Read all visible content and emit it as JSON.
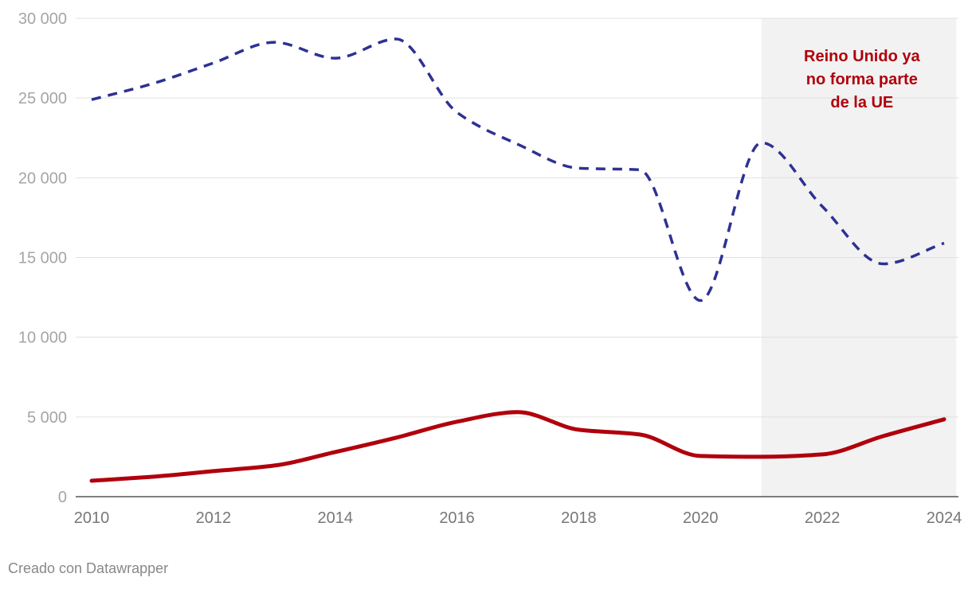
{
  "chart_data": {
    "type": "line",
    "x": [
      2010,
      2011,
      2012,
      2013,
      2014,
      2015,
      2016,
      2017,
      2018,
      2019,
      2020,
      2021,
      2022,
      2023,
      2024
    ],
    "series": [
      {
        "style": "dashed",
        "color": "#2e3192",
        "values": [
          24900,
          25900,
          27200,
          28500,
          27500,
          28700,
          24100,
          22100,
          20600,
          20500,
          12300,
          22200,
          18200,
          14600,
          15900
        ]
      },
      {
        "style": "solid",
        "color": "#b0000c",
        "values": [
          1000,
          1250,
          1600,
          1950,
          2800,
          3700,
          4700,
          5300,
          4200,
          3900,
          2550,
          2500,
          2650,
          3800,
          4850
        ]
      }
    ],
    "ylim": [
      0,
      30000
    ],
    "yticks": [
      "0",
      "5 000",
      "10 000",
      "15 000",
      "20 000",
      "25 000",
      "30 000"
    ],
    "ytick_values": [
      0,
      5000,
      10000,
      15000,
      20000,
      25000,
      30000
    ],
    "xticks": [
      "2010",
      "2012",
      "2014",
      "2016",
      "2018",
      "2020",
      "2022",
      "2024"
    ],
    "xtick_values": [
      2010,
      2012,
      2014,
      2016,
      2018,
      2020,
      2022,
      2024
    ],
    "shaded_region": {
      "from": 2021,
      "to": 2024.2,
      "color": "#f2f2f2"
    },
    "annotation": {
      "lines": [
        "Reino Unido ya",
        "no forma parte",
        "de la UE"
      ],
      "x": 2022.65,
      "y": 27300,
      "color": "#b0000c"
    },
    "grid": true,
    "legend": "none"
  },
  "footer": {
    "credit": "Creado con Datawrapper"
  }
}
